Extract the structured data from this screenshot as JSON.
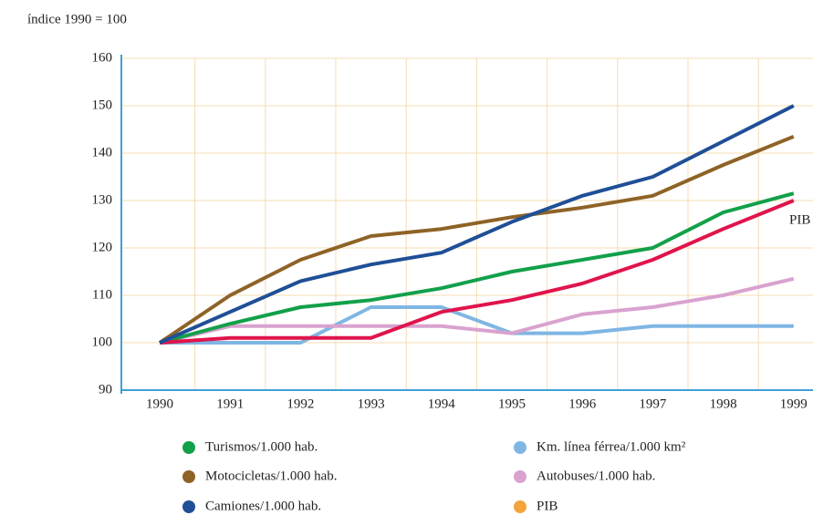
{
  "chart_data": {
    "type": "line",
    "subtitle": "índice 1990 = 100",
    "categories": [
      "1990",
      "1991",
      "1992",
      "1993",
      "1994",
      "1995",
      "1996",
      "1997",
      "1998",
      "1999"
    ],
    "series": [
      {
        "name": "Turismos/1.000 hab.",
        "color": "#12a04a",
        "values": [
          100,
          104,
          107.5,
          109,
          111.5,
          115,
          117.5,
          120,
          127.5,
          131.5
        ]
      },
      {
        "name": "Motocicletas/1.000 hab.",
        "color": "#8e6326",
        "values": [
          100,
          110,
          117.5,
          122.5,
          124,
          126.5,
          128.5,
          131,
          137.5,
          143.5
        ]
      },
      {
        "name": "Camiones/1.000 hab.",
        "color": "#1f4f96",
        "values": [
          100,
          106.5,
          113,
          116.5,
          119,
          125.5,
          131,
          135,
          142.5,
          150
        ]
      },
      {
        "name": "Km. línea férrea/1.000 km²",
        "color": "#7fb6e4",
        "values": [
          100,
          100,
          100,
          107.5,
          107.5,
          102,
          102,
          103.5,
          103.5,
          103.5
        ]
      },
      {
        "name": "Autobuses/1.000 hab.",
        "color": "#d9a2cf",
        "values": [
          100,
          103.5,
          103.5,
          103.5,
          103.5,
          102,
          106,
          107.5,
          110,
          113.5
        ]
      },
      {
        "name": "PIB",
        "color": "#e0144c",
        "legend_color": "#f3a43a",
        "values": [
          100,
          101,
          101,
          101,
          106.5,
          109,
          112.5,
          117.5,
          124,
          130
        ]
      }
    ],
    "annotations": [
      "PIB"
    ],
    "ylim": [
      90,
      160
    ],
    "yticks": [
      90,
      100,
      110,
      120,
      130,
      140,
      150,
      160
    ],
    "grid": true
  }
}
